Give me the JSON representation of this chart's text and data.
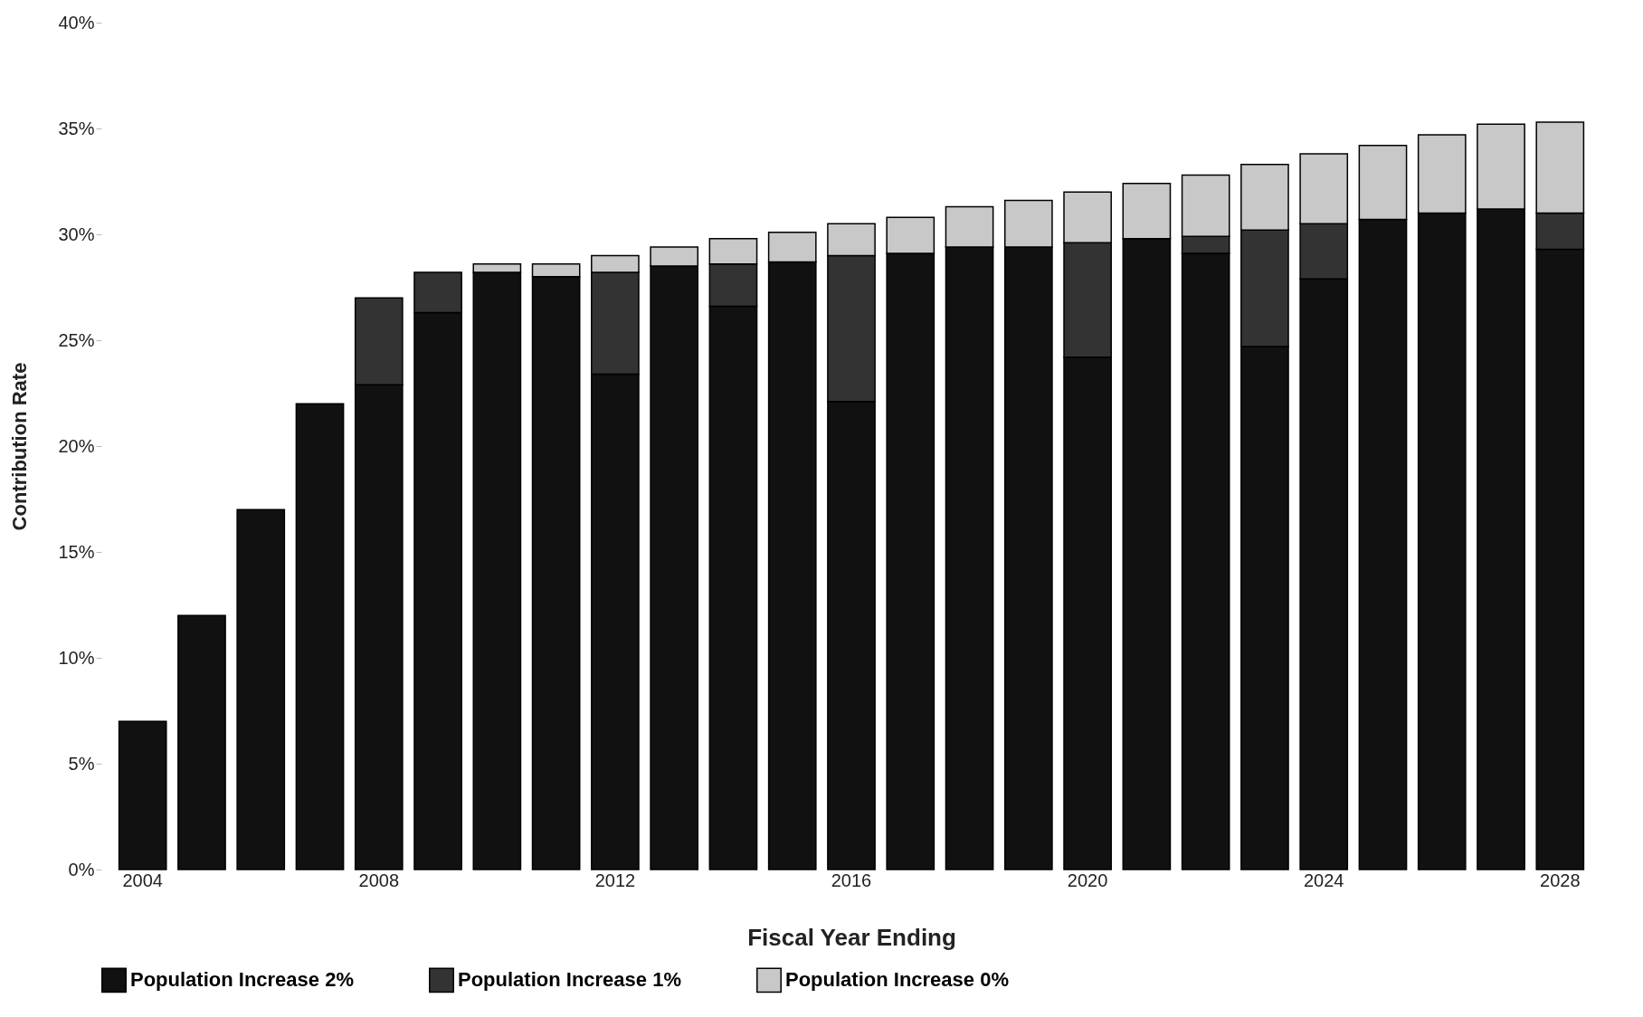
{
  "chart_data": {
    "type": "bar",
    "stacked": true,
    "xlabel": "Fiscal Year Ending",
    "ylabel": "Contribution Rate",
    "categories": [
      "2004",
      null,
      null,
      null,
      "2008",
      null,
      null,
      null,
      "2012",
      null,
      null,
      null,
      "2016",
      null,
      null,
      null,
      "2020",
      null,
      null,
      null,
      "2024",
      null,
      null,
      null,
      "2028"
    ],
    "series": [
      {
        "name": "Population Increase 2%",
        "color": "#111111",
        "values": [
          7,
          12,
          17,
          22,
          22.9,
          26.3,
          28.2,
          28.0,
          23.4,
          28.5,
          26.6,
          28.7,
          22.1,
          29.1,
          29.4,
          29.4,
          24.2,
          29.8,
          29.1,
          24.7,
          27.9,
          30.7,
          31.0,
          31.2,
          29.3
        ]
      },
      {
        "name": "Population Increase 1%",
        "color": "#333333",
        "values": [
          null,
          null,
          null,
          null,
          4.1,
          1.9,
          null,
          null,
          4.8,
          null,
          2.0,
          null,
          6.9,
          null,
          null,
          null,
          5.4,
          null,
          0.8,
          5.5,
          2.6,
          null,
          null,
          null,
          1.7
        ]
      },
      {
        "name": "Population Increase 0%",
        "color": "#c8c8c8",
        "values": [
          null,
          null,
          null,
          null,
          null,
          null,
          0.4,
          0.6,
          0.8,
          0.9,
          1.2,
          1.4,
          1.5,
          1.7,
          1.9,
          2.2,
          2.4,
          2.6,
          2.9,
          3.1,
          3.3,
          3.5,
          3.7,
          4.0,
          4.3
        ]
      }
    ],
    "ylim": [
      0,
      40
    ],
    "yticks": [
      {
        "value": 0,
        "label": "0%"
      },
      {
        "value": 5,
        "label": "5%"
      },
      {
        "value": 10,
        "label": "10%"
      },
      {
        "value": 15,
        "label": "15%"
      },
      {
        "value": 20,
        "label": "20%"
      },
      {
        "value": 25,
        "label": "25%"
      },
      {
        "value": 30,
        "label": "30%"
      },
      {
        "value": 35,
        "label": "35%"
      },
      {
        "value": 40,
        "label": "40%"
      }
    ],
    "grid": false,
    "legend": "bottom"
  }
}
